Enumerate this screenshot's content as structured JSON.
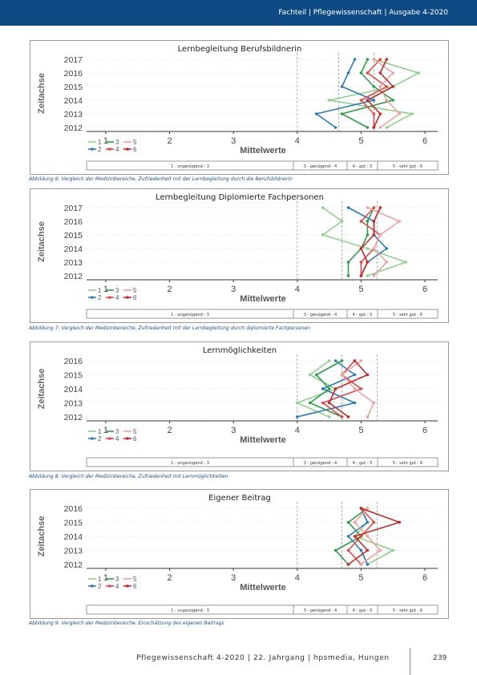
{
  "header": {
    "text": "Fachteil | Pflegewissenschaft | Ausgabe 4-2020"
  },
  "scale_labels": [
    "1 - ungenügend - 3",
    "3 - genügend - 4",
    "4 - gut - 5",
    "5 - sehr gut - 6"
  ],
  "legend_labels": [
    "1",
    "3",
    "5",
    "2",
    "4",
    "6"
  ],
  "colors": {
    "header": "#0d4a84",
    "1": "#8fd08a",
    "2": "#2b7bb9",
    "3": "#2e9d4a",
    "4": "#e04848",
    "5": "#f0a0a0",
    "6": "#c62828"
  },
  "chart_data": [
    {
      "type": "line",
      "title": "Lernbegleitung Berufsbildnerin",
      "xlabel": "Mittelwerte",
      "ylabel": "Zeitachse",
      "xlim": [
        0.7,
        6.2
      ],
      "xticks": [
        1,
        2,
        3,
        4,
        5,
        6
      ],
      "y": [
        2017,
        2016,
        2015,
        2014,
        2013,
        2012
      ],
      "threshold_lines": [
        4,
        4.65,
        5.2
      ],
      "series": [
        {
          "name": "1",
          "values": [
            5.2,
            5.9,
            5.5,
            4.5,
            5.8,
            5.4
          ]
        },
        {
          "name": "2",
          "values": [
            4.9,
            4.8,
            4.7,
            5.2,
            4.3,
            4.6
          ]
        },
        {
          "name": "3",
          "values": [
            5.1,
            5.0,
            5.2,
            5.5,
            4.7,
            5.1
          ]
        },
        {
          "name": "4",
          "values": [
            5.3,
            5.1,
            5.4,
            5.0,
            5.2,
            5.2
          ]
        },
        {
          "name": "5",
          "values": [
            5.2,
            5.5,
            5.3,
            5.4,
            5.6,
            5.3
          ]
        },
        {
          "name": "6",
          "values": [
            5.4,
            5.3,
            5.5,
            5.1,
            5.3,
            5.2
          ]
        }
      ],
      "scale_text": "1 - ungenügend - 3"
    },
    {
      "type": "line",
      "title": "Lernbegleitung Diplomierte Fachpersonen",
      "xlabel": "Mittelwerte",
      "ylabel": "Zeitachse",
      "xlim": [
        0.7,
        6.2
      ],
      "xticks": [
        1,
        2,
        3,
        4,
        5,
        6
      ],
      "y": [
        2017,
        2016,
        2015,
        2014,
        2013,
        2012
      ],
      "threshold_lines": [
        4,
        4.7,
        5.25
      ],
      "series": [
        {
          "name": "1",
          "values": [
            4.4,
            4.7,
            4.4,
            5.1,
            5.7,
            5.1
          ]
        },
        {
          "name": "2",
          "values": [
            4.8,
            5.2,
            5.2,
            5.4,
            5.1,
            5.0
          ]
        },
        {
          "name": "3",
          "values": [
            5.2,
            5.1,
            5.1,
            5.0,
            4.8,
            4.8
          ]
        },
        {
          "name": "4",
          "values": [
            5.2,
            5.0,
            5.3,
            5.2,
            5.0,
            5.0
          ]
        },
        {
          "name": "5",
          "values": [
            5.1,
            5.6,
            5.3,
            5.2,
            5.4,
            5.2
          ]
        },
        {
          "name": "6",
          "values": [
            5.3,
            5.2,
            5.2,
            5.0,
            5.1,
            5.0
          ]
        }
      ]
    },
    {
      "type": "line",
      "title": "Lernmöglichkeiten",
      "xlabel": "Mittelwerte",
      "ylabel": "Zeitachse",
      "xlim": [
        0.7,
        6.2
      ],
      "xticks": [
        1,
        2,
        3,
        4,
        5,
        6
      ],
      "y": [
        2016,
        2015,
        2014,
        2013,
        2012
      ],
      "threshold_lines": [
        4,
        4.7,
        5.25
      ],
      "series": [
        {
          "name": "1",
          "values": [
            4.5,
            4.2,
            4.6,
            4.0,
            4.5
          ]
        },
        {
          "name": "2",
          "values": [
            4.6,
            4.9,
            4.4,
            4.9,
            4.0
          ]
        },
        {
          "name": "3",
          "values": [
            4.7,
            4.3,
            4.5,
            4.2,
            4.7
          ]
        },
        {
          "name": "4",
          "values": [
            4.9,
            4.7,
            5.0,
            4.4,
            4.7
          ]
        },
        {
          "name": "5",
          "values": [
            5.0,
            4.7,
            4.9,
            5.2,
            5.1
          ]
        },
        {
          "name": "6",
          "values": [
            4.9,
            5.1,
            4.6,
            4.5,
            4.8
          ]
        }
      ]
    },
    {
      "type": "line",
      "title": "Eigener Beitrag",
      "xlabel": "Mittelwerte",
      "ylabel": "Zeitachse",
      "xlim": [
        0.7,
        6.2
      ],
      "xticks": [
        1,
        2,
        3,
        4,
        5,
        6
      ],
      "y": [
        2016,
        2015,
        2014,
        2013,
        2012
      ],
      "threshold_lines": [
        4,
        4.7,
        5.25
      ],
      "series": [
        {
          "name": "1",
          "values": [
            5.0,
            5.1,
            4.9,
            5.5,
            5.1
          ]
        },
        {
          "name": "2",
          "values": [
            5.0,
            5.1,
            4.8,
            5.0,
            5.1
          ]
        },
        {
          "name": "3",
          "values": [
            5.1,
            4.8,
            5.0,
            4.6,
            4.8
          ]
        },
        {
          "name": "4",
          "values": [
            5.0,
            5.2,
            5.0,
            4.8,
            5.0
          ]
        },
        {
          "name": "5",
          "values": [
            5.1,
            4.9,
            5.1,
            5.3,
            5.0
          ]
        },
        {
          "name": "6",
          "values": [
            5.0,
            5.6,
            4.9,
            5.1,
            4.8
          ]
        }
      ]
    }
  ],
  "captions": [
    "Abbildung 6: Vergleich der Medizinbereiche, Zufriedenheit mit der Lernbegleitung durch die Berufsbildnerin",
    "Abbildung 7: Vergleich der Medizinbereiche, Zufriedenheit mit der Lernbegleitung durch diplomierte Fachpersonen",
    "Abbildung 8: Vergleich der Medizinbereiche, Zufriedenheit mit Lernmöglichkeiten",
    "Abbildung 9: Vergleich der Medizinbereiche, Einschätzung des eigenen Beitrags"
  ],
  "footer": {
    "text": "Pflegewissenschaft 4-2020 | 22. Jahrgang | hpsmedia, Hungen",
    "page": "239"
  }
}
